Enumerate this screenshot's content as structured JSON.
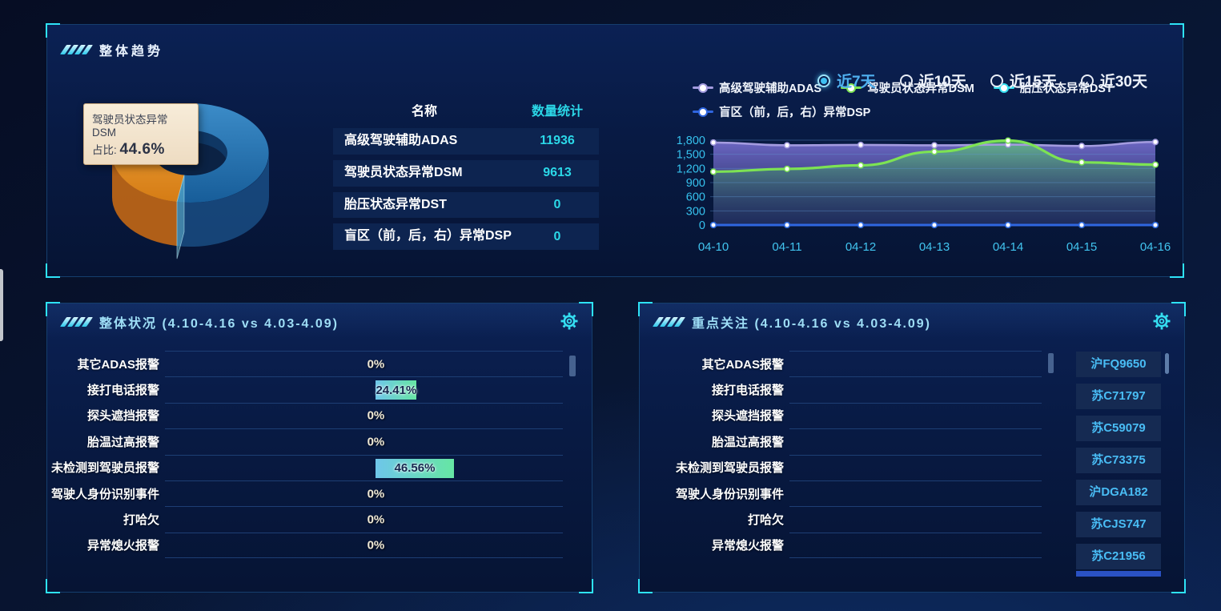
{
  "colors": {
    "accent_cyan": "#2ee3f7",
    "value_cyan": "#2bd8e8",
    "bar_gradient_start": "#6ec6ea",
    "bar_gradient_end": "#66e6a3",
    "plate_text": "#49bdf5",
    "selected_radio": "#3ec1f2"
  },
  "trend_panel": {
    "title": "整体趋势",
    "time_ranges": [
      {
        "label": "近7天",
        "selected": true
      },
      {
        "label": "近10天",
        "selected": false
      },
      {
        "label": "近15天",
        "selected": false
      },
      {
        "label": "近30天",
        "selected": false
      }
    ],
    "tooltip": {
      "series": "驾驶员状态异常DSM",
      "label": "占比:",
      "value": "44.6%"
    },
    "table": {
      "headers": [
        "名称",
        "数量统计"
      ],
      "rows": [
        {
          "name": "高级驾驶辅助ADAS",
          "value": "11936"
        },
        {
          "name": "驾驶员状态异常DSM",
          "value": "9613"
        },
        {
          "name": "胎压状态异常DST",
          "value": "0"
        },
        {
          "name": "盲区（前，后，右）异常DSP",
          "value": "0"
        }
      ]
    }
  },
  "chart_data": [
    {
      "type": "pie",
      "style": "3d-donut",
      "unit": "percent",
      "slices": [
        {
          "name": "驾驶员状态异常DSM",
          "value": 44.6,
          "color": "#e08a22"
        },
        {
          "name": "高级驾驶辅助ADAS",
          "value": 55.4,
          "color": "#2a77b8"
        }
      ]
    },
    {
      "type": "line",
      "x": [
        "04-10",
        "04-11",
        "04-12",
        "04-13",
        "04-14",
        "04-15",
        "04-16"
      ],
      "series": [
        {
          "name": "高级驾驶辅助ADAS",
          "color": "#a39bdf",
          "area": "purple",
          "values": [
            1750,
            1690,
            1700,
            1690,
            1705,
            1675,
            1760
          ]
        },
        {
          "name": "驾驶员状态异常DSM",
          "color": "#7de353",
          "area": "green",
          "values": [
            1130,
            1190,
            1265,
            1555,
            1790,
            1330,
            1280
          ]
        },
        {
          "name": "胎压状态异常DST",
          "color": "#35dff0",
          "area": null,
          "values": [
            0,
            0,
            0,
            0,
            0,
            0,
            0
          ]
        },
        {
          "name": "盲区（前，后，右）异常DSP",
          "color": "#2f66e0",
          "area": null,
          "values": [
            0,
            0,
            0,
            0,
            0,
            0,
            0
          ]
        }
      ],
      "ylim": [
        0,
        1800
      ],
      "yticks": [
        "0",
        "300",
        "600",
        "900",
        "1,200",
        "1,500",
        "1,800"
      ],
      "grid": "horizontal",
      "legend_position": "top"
    }
  ],
  "status_panel": {
    "title": "整体状况 (4.10-4.16 vs 4.03-4.09)",
    "settings_icon": "gear-icon",
    "rows": [
      {
        "label": "其它ADAS报警",
        "value": 0,
        "display": "0%"
      },
      {
        "label": "接打电话报警",
        "value": 24.41,
        "display": "24.41%"
      },
      {
        "label": "探头遮挡报警",
        "value": 0,
        "display": "0%"
      },
      {
        "label": "胎温过高报警",
        "value": 0,
        "display": "0%"
      },
      {
        "label": "未检测到驾驶员报警",
        "value": 46.56,
        "display": "46.56%"
      },
      {
        "label": "驾驶人身份识别事件",
        "value": 0,
        "display": "0%"
      },
      {
        "label": "打哈欠",
        "value": 0,
        "display": "0%"
      },
      {
        "label": "异常熄火报警",
        "value": 0,
        "display": "0%"
      }
    ]
  },
  "focus_panel": {
    "title": "重点关注 (4.10-4.16 vs 4.03-4.09)",
    "settings_icon": "gear-icon",
    "rows": [
      {
        "label": "其它ADAS报警"
      },
      {
        "label": "接打电话报警"
      },
      {
        "label": "探头遮挡报警"
      },
      {
        "label": "胎温过高报警"
      },
      {
        "label": "未检测到驾驶员报警"
      },
      {
        "label": "驾驶人身份识别事件"
      },
      {
        "label": "打哈欠"
      },
      {
        "label": "异常熄火报警"
      }
    ],
    "plates": [
      "沪FQ9650",
      "苏C71797",
      "苏C59079",
      "苏C73375",
      "沪DGA182",
      "苏CJS747",
      "苏C21956"
    ]
  }
}
